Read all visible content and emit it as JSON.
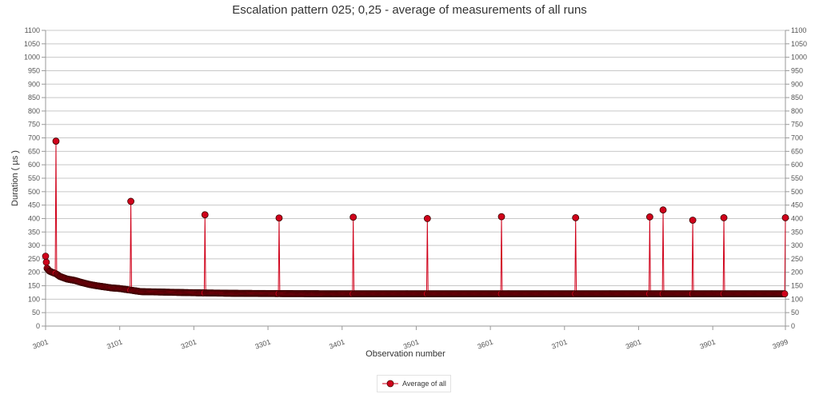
{
  "chart_data": {
    "type": "line",
    "title": "Escalation pattern 025; 0,25 - average of measurements of all runs",
    "xlabel": "Observation number",
    "ylabel": "Duration ( µs )",
    "xlim": [
      3001,
      3999
    ],
    "ylim": [
      0,
      1100
    ],
    "y_ticks": [
      0,
      50,
      100,
      150,
      200,
      250,
      300,
      350,
      400,
      450,
      500,
      550,
      600,
      650,
      700,
      750,
      800,
      850,
      900,
      950,
      1000,
      1050,
      1100
    ],
    "y_tick_labels": [
      "0",
      "50",
      "100",
      "150",
      "200",
      "250",
      "300",
      "350",
      "400",
      "450",
      "500",
      "550",
      "600",
      "650",
      "700",
      "750",
      "800",
      "850",
      "900",
      "950",
      "1000",
      "1050",
      "1100"
    ],
    "x_ticks": [
      3001,
      3101,
      3201,
      3301,
      3401,
      3501,
      3601,
      3701,
      3801,
      3901,
      3999
    ],
    "x_tick_labels": [
      "3001",
      "3101",
      "3201",
      "3301",
      "3401",
      "3501",
      "3601",
      "3701",
      "3801",
      "3901",
      "3999"
    ],
    "grid": true,
    "legend_placement": "bottom-center",
    "series": [
      {
        "name": "Average of all",
        "color": "#d0021b",
        "baseline": [
          [
            3001,
            260
          ],
          [
            3003,
            215
          ],
          [
            3006,
            205
          ],
          [
            3010,
            200
          ],
          [
            3015,
            195
          ],
          [
            3020,
            185
          ],
          [
            3030,
            175
          ],
          [
            3040,
            170
          ],
          [
            3050,
            162
          ],
          [
            3060,
            155
          ],
          [
            3070,
            150
          ],
          [
            3080,
            146
          ],
          [
            3090,
            142
          ],
          [
            3100,
            140
          ],
          [
            3110,
            136
          ],
          [
            3120,
            132
          ],
          [
            3130,
            128
          ],
          [
            3150,
            127
          ],
          [
            3200,
            124
          ],
          [
            3250,
            122
          ],
          [
            3300,
            121
          ],
          [
            3400,
            120
          ],
          [
            3999,
            120
          ]
        ],
        "spikes": [
          [
            3015,
            688
          ],
          [
            3116,
            464
          ],
          [
            3216,
            414
          ],
          [
            3316,
            402
          ],
          [
            3416,
            405
          ],
          [
            3516,
            400
          ],
          [
            3616,
            407
          ],
          [
            3716,
            403
          ],
          [
            3816,
            406
          ],
          [
            3834,
            432
          ],
          [
            3874,
            394
          ],
          [
            3916,
            403
          ],
          [
            4016,
            407
          ],
          [
            3999,
            403
          ]
        ]
      }
    ]
  }
}
